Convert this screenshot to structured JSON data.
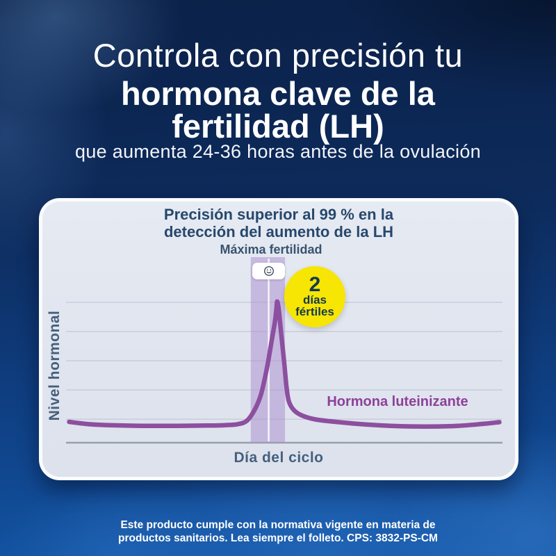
{
  "header": {
    "title_light": "Controla con precisión tu",
    "title_bold_line1": "hormona clave de la",
    "title_bold_line2": "fertilidad (LH)",
    "subtitle": "que aumenta 24-36 horas antes de la ovulación"
  },
  "card": {
    "title_line1": "Precisión superior al 99 % en la",
    "title_line2": "detección del aumento de la LH",
    "band_label": "Máxima fertilidad",
    "smiley_icon": "smiley-face",
    "badge": {
      "count": "2",
      "word1": "días",
      "word2": "fértiles"
    },
    "legend": "Hormona luteinizante",
    "ylabel": "Nivel hormonal",
    "xlabel": "Día del ciclo"
  },
  "footer": {
    "line1": "Este producto cumple con la normativa vigente en materia de",
    "line2": "productos sanitarios. Lea siempre el folleto. CPS: 3832-PS-CM"
  },
  "colors": {
    "curve_purple": "#8d4f9f",
    "legend_purple": "#8d4199",
    "band_fill": "rgba(168,136,205,0.48)",
    "band_divider": "rgba(255,255,255,0.85)",
    "badge_yellow": "#f7e504",
    "badge_text_navy": "#14394f",
    "title_navy": "#27486d",
    "axis_label_slate": "#44607e",
    "gridline": "#c7cdd9",
    "axis_line": "#96a0ad",
    "card_bg": "#e2e6ef",
    "bg_top": "#0c2247",
    "bg_bottom": "#1253a2",
    "text_white": "#ffffff"
  },
  "chart_data": {
    "type": "line",
    "title": "Precisión superior al 99 % en la detección del aumento de la LH",
    "xlabel": "Día del ciclo",
    "ylabel": "Nivel hormonal",
    "x_range": [
      0,
      28
    ],
    "y_range": [
      0,
      110
    ],
    "tick_labels": "none (qualitative axes)",
    "grid": "horizontal gridlines only",
    "gridline_levels": [
      17.2,
      38.5,
      59.8,
      81.1,
      102.4
    ],
    "legend_position": "right of curve, inside plot",
    "series": [
      {
        "name": "Hormona luteinizante",
        "color": "#8d4f9f",
        "points": [
          [
            0.2,
            15.2
          ],
          [
            1.5,
            13.5
          ],
          [
            3,
            12.7
          ],
          [
            5,
            12.3
          ],
          [
            7,
            12.3
          ],
          [
            9,
            12.5
          ],
          [
            10.2,
            12.8
          ],
          [
            11.0,
            13.5
          ],
          [
            11.6,
            16.0
          ],
          [
            12.1,
            24.0
          ],
          [
            12.5,
            35.0
          ],
          [
            12.9,
            55.0
          ],
          [
            13.2,
            75.0
          ],
          [
            13.4,
            88.0
          ],
          [
            13.5,
            98.0
          ],
          [
            13.55,
            103.0
          ],
          [
            13.65,
            97.0
          ],
          [
            13.8,
            80.0
          ],
          [
            14.0,
            58.0
          ],
          [
            14.15,
            40.0
          ],
          [
            14.3,
            30.0
          ],
          [
            14.6,
            24.0
          ],
          [
            15.1,
            20.0
          ],
          [
            16.0,
            17.0
          ],
          [
            17.5,
            15.0
          ],
          [
            19.0,
            13.5
          ],
          [
            21.0,
            12.2
          ],
          [
            23.0,
            11.8
          ],
          [
            25.0,
            12.2
          ],
          [
            26.8,
            13.8
          ],
          [
            27.8,
            15.0
          ]
        ]
      }
    ],
    "annotations": {
      "fertile_window_days": [
        11.85,
        14.05
      ],
      "window_divider_day": 13.0,
      "peak_day": 13.55,
      "fertile_window_label": "Máxima fertilidad",
      "fertile_days_badge": "2 días fértiles",
      "smiley_marker": "peak fertility smiley in white chip over band"
    }
  }
}
